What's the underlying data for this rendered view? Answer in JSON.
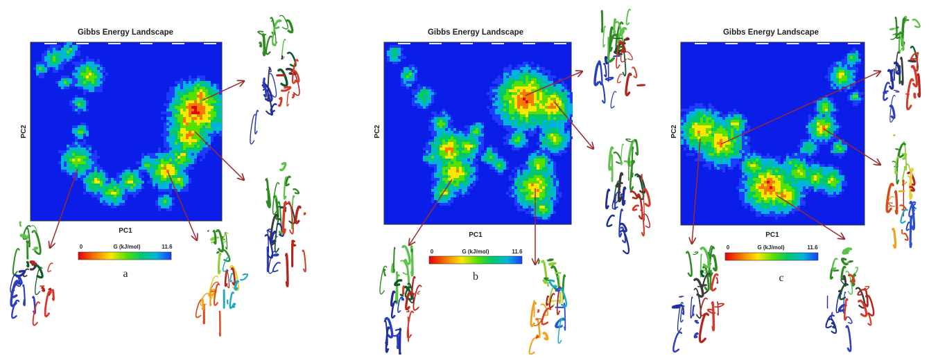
{
  "panels": [
    {
      "title": "Gibbs Energy Landscape",
      "xlabel": "PC1",
      "ylabel": "PC2",
      "colorbar": {
        "label": "G (kJ/mol)",
        "min": "0",
        "max": "11.6"
      },
      "caption": "a"
    },
    {
      "title": "Gibbs Energy Landscape",
      "xlabel": "PC1",
      "ylabel": "PC2",
      "colorbar": {
        "label": "G (kJ/mol)",
        "min": "0",
        "max": "11.6"
      },
      "caption": "b"
    },
    {
      "title": "Gibbs Energy Landscape",
      "xlabel": "PC1",
      "ylabel": "PC2",
      "colorbar": {
        "label": "G (kJ/mol)",
        "min": "0",
        "max": "11.6"
      },
      "caption": "c"
    }
  ],
  "colors": {
    "background": "#0a1ee8",
    "arrow": "#a0282d",
    "colormap": [
      "#e8000a",
      "#f57a00",
      "#ffe600",
      "#55e000",
      "#00c86e",
      "#00b4dc",
      "#1e3cff"
    ]
  },
  "chart_data": [
    {
      "type": "heatmap",
      "title": "Gibbs Energy Landscape",
      "xlabel": "PC1",
      "ylabel": "PC2",
      "colorbar_range": [
        0,
        11.6
      ],
      "colorbar_label": "G (kJ/mol)",
      "minima_count": 4
    },
    {
      "type": "heatmap",
      "title": "Gibbs Energy Landscape",
      "xlabel": "PC1",
      "ylabel": "PC2",
      "colorbar_range": [
        0,
        11.6
      ],
      "colorbar_label": "G (kJ/mol)",
      "minima_count": 3
    },
    {
      "type": "heatmap",
      "title": "Gibbs Energy Landscape",
      "xlabel": "PC1",
      "ylabel": "PC2",
      "colorbar_range": [
        0,
        11.6
      ],
      "colorbar_label": "G (kJ/mol)",
      "minima_count": 4
    }
  ]
}
